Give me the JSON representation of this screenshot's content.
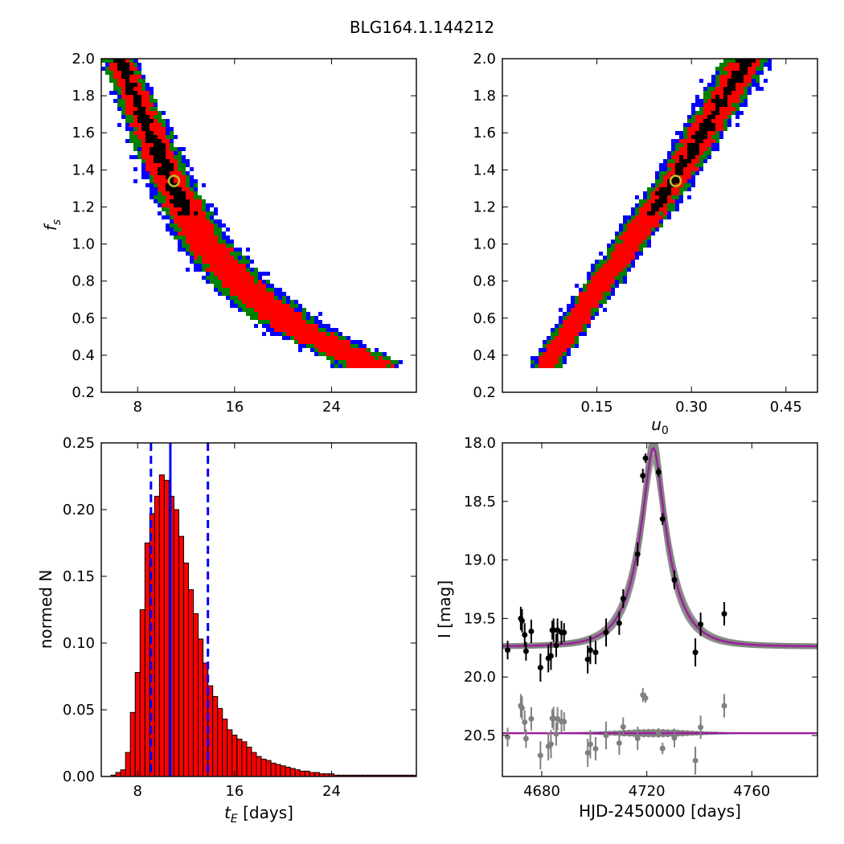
{
  "figure": {
    "title": "BLG164.1.144212"
  },
  "chart_data": [
    {
      "type": "heatmap",
      "panel": "top-left",
      "xlabel": "",
      "ylabel": "f_s",
      "xlim": [
        5,
        31
      ],
      "ylim": [
        0.2,
        2.0
      ],
      "xticks": [
        8,
        16,
        24
      ],
      "yticks": [
        0.2,
        0.4,
        0.6,
        0.8,
        1.0,
        1.2,
        1.4,
        1.6,
        1.8,
        2.0
      ],
      "best_fit": {
        "x": 11.0,
        "y": 1.34
      },
      "levels": [
        {
          "name": "blue",
          "color": "#0000ff"
        },
        {
          "name": "green",
          "color": "#008000"
        },
        {
          "name": "red",
          "color": "#ff0000"
        },
        {
          "name": "black",
          "color": "#000000"
        }
      ],
      "ridge": [
        [
          6.5,
          2.0
        ],
        [
          9,
          1.6
        ],
        [
          11,
          1.3
        ],
        [
          13.5,
          1.0
        ],
        [
          17,
          0.75
        ],
        [
          21,
          0.55
        ],
        [
          27,
          0.36
        ]
      ]
    },
    {
      "type": "heatmap",
      "panel": "top-right",
      "xlabel": "u_0",
      "ylabel": "",
      "xlim": [
        0.0,
        0.5
      ],
      "ylim": [
        0.2,
        2.0
      ],
      "xticks": [
        0.15,
        0.3,
        0.45
      ],
      "xticklabels": [
        "0.15",
        "0.30",
        "0.45"
      ],
      "yticks": [
        0.2,
        0.4,
        0.6,
        0.8,
        1.0,
        1.2,
        1.4,
        1.6,
        1.8,
        2.0
      ],
      "best_fit": {
        "x": 0.275,
        "y": 1.34
      },
      "ridge": [
        [
          0.07,
          0.35
        ],
        [
          0.15,
          0.75
        ],
        [
          0.27,
          1.33
        ],
        [
          0.39,
          2.0
        ]
      ]
    },
    {
      "type": "bar",
      "panel": "bottom-left",
      "xlabel": "t_E [days]",
      "ylabel": "normed N",
      "xlim": [
        5,
        31
      ],
      "ylim": [
        0.0,
        0.25
      ],
      "xticks": [
        8,
        16,
        24
      ],
      "yticks": [
        0.0,
        0.05,
        0.1,
        0.15,
        0.2,
        0.25
      ],
      "yticklabels": [
        "0.00",
        "0.05",
        "0.10",
        "0.15",
        "0.20",
        "0.25"
      ],
      "bar_color": "#ff0000",
      "bin_start": 5.0,
      "bin_width": 0.4,
      "values": [
        0,
        0,
        0.001,
        0.003,
        0.005,
        0.018,
        0.048,
        0.078,
        0.125,
        0.175,
        0.197,
        0.21,
        0.226,
        0.222,
        0.21,
        0.2,
        0.18,
        0.16,
        0.14,
        0.122,
        0.103,
        0.085,
        0.068,
        0.06,
        0.051,
        0.043,
        0.035,
        0.031,
        0.028,
        0.026,
        0.022,
        0.018,
        0.015,
        0.013,
        0.012,
        0.01,
        0.009,
        0.008,
        0.007,
        0.006,
        0.005,
        0.004,
        0.004,
        0.003,
        0.003,
        0.002,
        0.002,
        0.002,
        0.001,
        0.001,
        0.001,
        0.001,
        0.001,
        0.001,
        0.001,
        0.001,
        0.001,
        0.001,
        0.001,
        0.001,
        0.001,
        0.001,
        0.001,
        0.001,
        0.001
      ],
      "median_line": 10.7,
      "interval_lines": [
        9.1,
        13.8
      ],
      "line_color": "#0000ff"
    },
    {
      "type": "scatter",
      "panel": "bottom-right",
      "xlabel": "HJD-2450000 [days]",
      "ylabel": "I [mag]",
      "xlim": [
        4665,
        4785
      ],
      "ylim": [
        20.85,
        18.0
      ],
      "y_inverted": true,
      "xticks": [
        4680,
        4720,
        4760
      ],
      "yticks": [
        18.0,
        18.5,
        19.0,
        19.5,
        20.0,
        20.5
      ],
      "model": {
        "t0": 4722.5,
        "u0": 0.27,
        "tE": 11.0,
        "baseline": 19.74,
        "fs": 1.34,
        "color": "#a0189f",
        "band_color": "#808080"
      },
      "residual_offset": 20.48,
      "series": [
        {
          "name": "data",
          "color": "#000000",
          "x": [
            4667,
            4672,
            4672.5,
            4673.5,
            4674,
            4676,
            4679.5,
            4682.5,
            4683.5,
            4684,
            4684.5,
            4685.5,
            4686,
            4687.5,
            4688.5,
            4697.5,
            4698.5,
            4700.5,
            4704.5,
            4709.5,
            4711,
            4716.5,
            4718.5,
            4719.5,
            4724.5,
            4726,
            4730.5,
            4738.5,
            4740.5,
            4749.5
          ],
          "y": [
            19.77,
            19.5,
            19.52,
            19.64,
            19.78,
            19.61,
            19.92,
            19.84,
            19.82,
            19.6,
            19.6,
            19.73,
            19.6,
            19.62,
            19.62,
            19.85,
            19.77,
            19.79,
            19.62,
            19.54,
            19.33,
            18.95,
            18.28,
            18.13,
            18.25,
            18.65,
            19.17,
            19.79,
            19.55,
            19.46
          ],
          "err": [
            0.08,
            0.1,
            0.1,
            0.1,
            0.08,
            0.1,
            0.12,
            0.12,
            0.12,
            0.08,
            0.1,
            0.1,
            0.1,
            0.1,
            0.08,
            0.12,
            0.12,
            0.1,
            0.12,
            0.1,
            0.08,
            0.1,
            0.06,
            0.04,
            0.04,
            0.05,
            0.08,
            0.12,
            0.1,
            0.1
          ]
        }
      ]
    }
  ]
}
